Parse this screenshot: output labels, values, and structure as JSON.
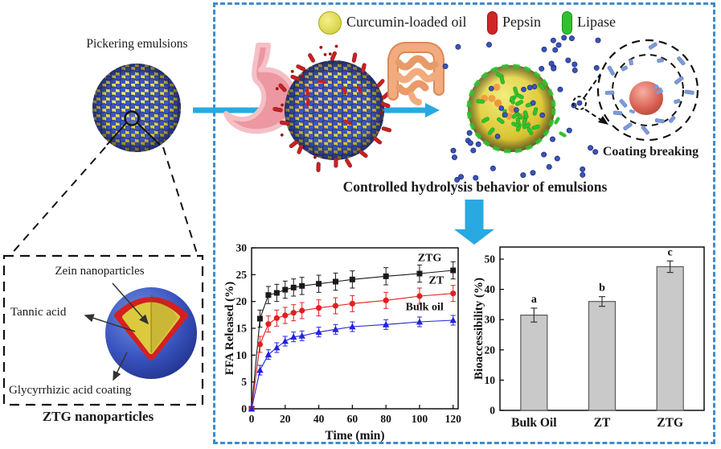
{
  "left": {
    "pickering_title": "Pickering emulsions",
    "zein_label": "Zein nanoparticles",
    "tannic_label": "Tannic acid",
    "glycyrrhizic_label": "Glycyrrhizic acid coating",
    "ztg_caption": "ZTG nanoparticles"
  },
  "legend": {
    "curcumin_label": "Curcumin-loaded oil",
    "pepsin_label": "Pepsin",
    "lipase_label": "Lipase"
  },
  "process": {
    "caption": "Controlled hydrolysis behavior of emulsions",
    "coating_breaking_label": "Coating breaking"
  },
  "colors": {
    "panel_border": "#3f8ccb",
    "arrow_cyan": "#29a9e1",
    "pepsin_red": "#c92121",
    "lipase_green": "#2fc22f",
    "oil_yellow": "#e4d33c",
    "particle_blue": "#3b54bb",
    "bar_fill": "#c9c9c9"
  },
  "chart_data": [
    {
      "type": "line",
      "title": "",
      "xlabel": "Time (min)",
      "ylabel": "FFA Released (%)",
      "xlim": [
        0,
        123
      ],
      "ylim": [
        0,
        30
      ],
      "xticks": [
        0,
        20,
        40,
        60,
        80,
        100,
        120
      ],
      "yticks": [
        0,
        5,
        10,
        15,
        20,
        25,
        30
      ],
      "grid": false,
      "legend_position": "inline-labels",
      "x": [
        0,
        5,
        10,
        15,
        20,
        25,
        30,
        40,
        50,
        60,
        80,
        100,
        120
      ],
      "series": [
        {
          "name": "ZTG",
          "marker": "square",
          "color": "#1a1a1a",
          "err": 1.6,
          "values": [
            0,
            16.8,
            21.2,
            21.6,
            22.2,
            22.6,
            22.9,
            23.3,
            23.7,
            24.1,
            24.7,
            25.2,
            25.8
          ]
        },
        {
          "name": "ZT",
          "marker": "circle",
          "color": "#e02020",
          "err": 1.5,
          "values": [
            0,
            12.0,
            15.8,
            16.9,
            17.4,
            17.9,
            18.3,
            18.8,
            19.2,
            19.6,
            20.2,
            21.0,
            21.5
          ]
        },
        {
          "name": "Bulk oil",
          "marker": "triangle",
          "color": "#2424d8",
          "err": 0.9,
          "values": [
            0,
            7.2,
            10.1,
            11.4,
            12.6,
            13.4,
            13.6,
            14.3,
            14.8,
            15.3,
            15.7,
            16.2,
            16.5
          ]
        }
      ]
    },
    {
      "type": "bar",
      "title": "",
      "xlabel": "",
      "ylabel": "Bioaccessibility (%)",
      "ylim": [
        0,
        54
      ],
      "yticks": [
        0,
        10,
        20,
        30,
        40,
        50
      ],
      "grid": false,
      "categories": [
        "Bulk Oil",
        "ZT",
        "ZTG"
      ],
      "values": [
        31.5,
        36.0,
        47.5
      ],
      "errors": [
        2.3,
        1.6,
        1.9
      ],
      "letters": [
        "a",
        "b",
        "c"
      ],
      "bar_color": "#c9c9c9",
      "bar_border": "#5a5a5a"
    }
  ]
}
